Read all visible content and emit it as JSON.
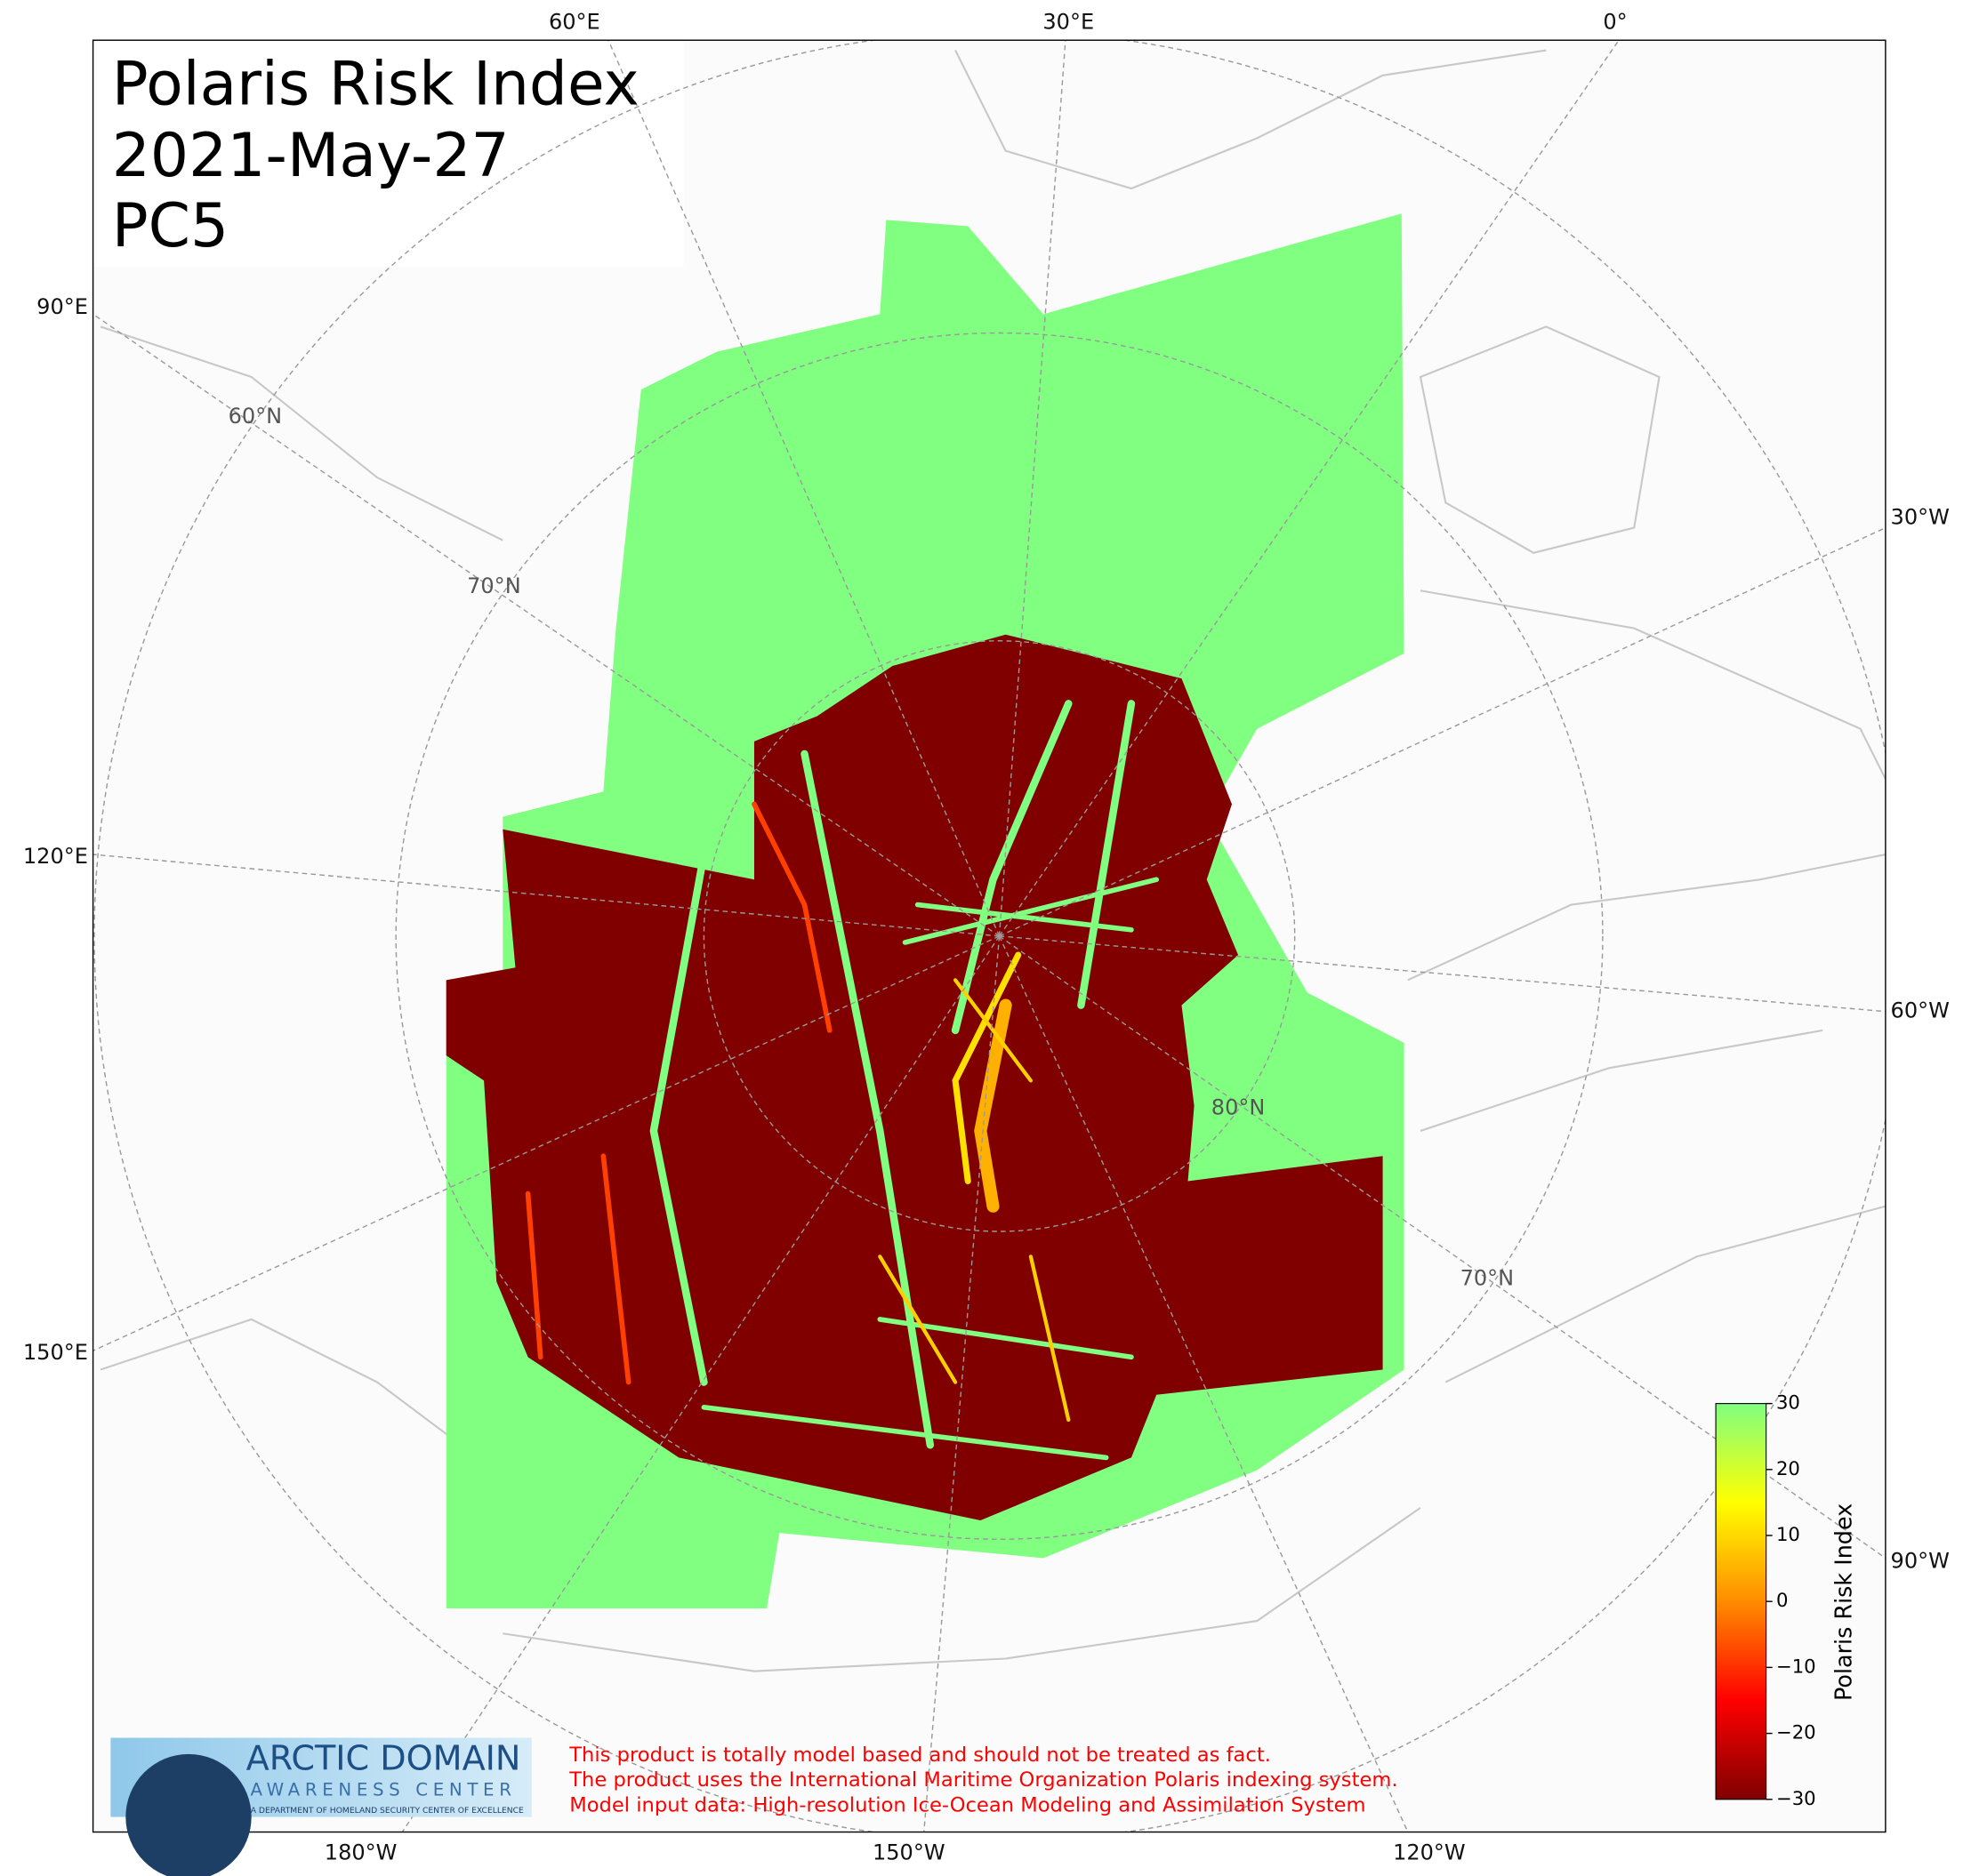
{
  "map": {
    "title_lines": [
      "Polaris Risk Index",
      "2021-May-27",
      "PC5"
    ],
    "longitude_labels": [
      "60°E",
      "30°E",
      "0°",
      "90°E",
      "120°E",
      "150°E",
      "30°W",
      "60°W",
      "90°W",
      "180°W",
      "150°W",
      "120°W"
    ],
    "latitude_labels": [
      "60°N",
      "70°N",
      "80°N",
      "70°N"
    ],
    "colorbar": {
      "label": "Polaris Risk Index",
      "clim": [
        -30,
        30
      ],
      "ticks": [
        {
          "value": 30,
          "label": "30"
        },
        {
          "value": 20,
          "label": "20"
        },
        {
          "value": 10,
          "label": "10"
        },
        {
          "value": 0,
          "label": "0"
        },
        {
          "value": -10,
          "label": "−10"
        },
        {
          "value": -20,
          "label": "−20"
        },
        {
          "value": -30,
          "label": "−30"
        }
      ],
      "colors": [
        "#800000",
        "#ff0000",
        "#ff8c00",
        "#ffff00",
        "#80ff80"
      ]
    },
    "disclaimer": [
      "This product is totally model based and should not be treated as fact.",
      "The product uses the International Maritime Organization Polaris indexing system.",
      "Model input data: High-resolution Ice-Ocean Modeling and Assimilation System"
    ],
    "logo": {
      "name": "ARCTIC DOMAIN",
      "subtitle": "AWARENESS CENTER",
      "tagline": "A DEPARTMENT OF HOMELAND SECURITY CENTER OF EXCELLENCE"
    }
  }
}
